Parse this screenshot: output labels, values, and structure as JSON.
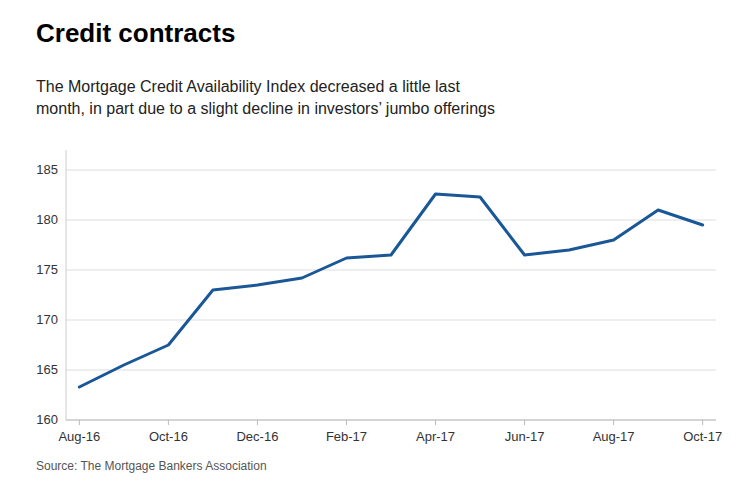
{
  "chart_data": {
    "type": "line",
    "title": "Credit contracts",
    "subtitle": "The Mortgage Credit Availability Index decreased a little last\nmonth, in part due to a slight decline in investors’ jumbo offerings",
    "source": "Source: The Mortgage Bankers Association",
    "categories": [
      "Aug-16",
      null,
      "Oct-16",
      null,
      "Dec-16",
      null,
      "Feb-17",
      null,
      "Apr-17",
      null,
      "Jun-17",
      null,
      "Aug-17",
      null,
      "Oct-17"
    ],
    "values": [
      163.3,
      165.5,
      167.5,
      173.0,
      173.5,
      174.2,
      176.2,
      176.5,
      182.6,
      182.3,
      176.5,
      177.0,
      178.0,
      181.0,
      179.5
    ],
    "color": "#1a5796",
    "ylim": [
      160,
      187
    ],
    "yticks": [
      160,
      165,
      170,
      175,
      180,
      185
    ],
    "grid": true
  }
}
